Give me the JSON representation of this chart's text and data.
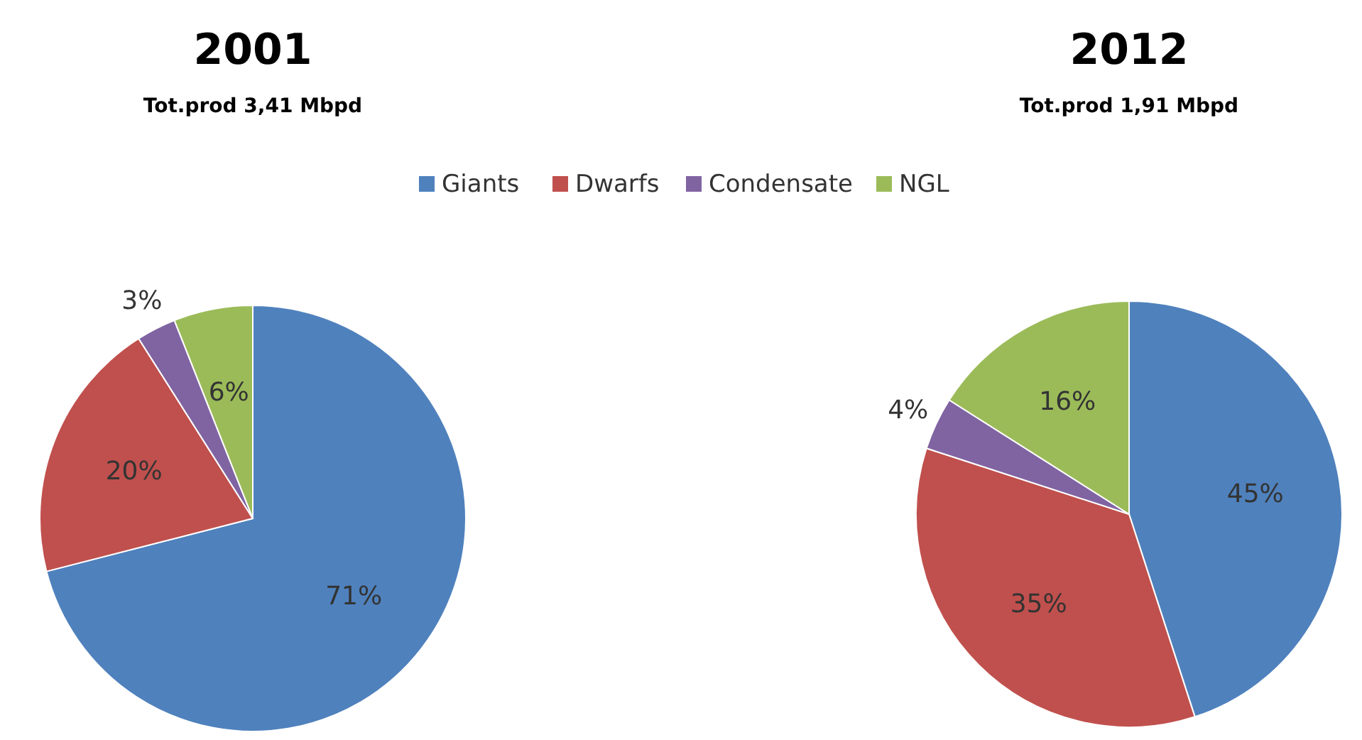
{
  "chart_data": [
    {
      "type": "pie",
      "title": "2001",
      "subtitle": "Tot.prod 3,41 Mbpd",
      "categories": [
        "Giants",
        "Dwarfs",
        "Condensate",
        "NGL"
      ],
      "values": [
        71,
        20,
        3,
        6
      ],
      "value_labels": [
        "71%",
        "20%",
        "3%",
        "6%"
      ],
      "colors": [
        "#4f81bd",
        "#c0504d",
        "#8064a2",
        "#9bbb59"
      ],
      "legend": "top"
    },
    {
      "type": "pie",
      "title": "2012",
      "subtitle": "Tot.prod 1,91 Mbpd",
      "categories": [
        null,
        null,
        null,
        null
      ],
      "values": [
        45,
        35,
        4,
        16
      ],
      "value_labels": [
        "45%",
        "35%",
        "4%",
        "16%"
      ],
      "colors": [
        "#4f81bd",
        "#c0504d",
        "#8064a2",
        "#9bbb59"
      ]
    }
  ]
}
